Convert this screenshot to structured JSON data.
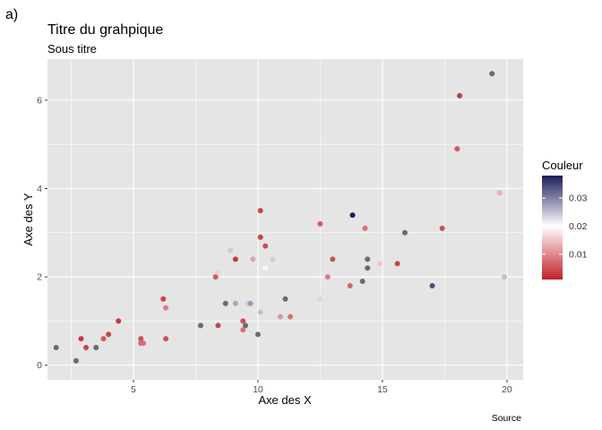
{
  "tag": "a)",
  "chart_data": {
    "type": "scatter",
    "title": "Titre du grahpique",
    "subtitle": "Sous titre",
    "xlabel": "Axe des X",
    "ylabel": "Axe des Y",
    "caption": "Source",
    "xlim": [
      1.55,
      20.65
    ],
    "ylim": [
      -0.33,
      6.93
    ],
    "x_ticks": [
      5,
      10,
      15,
      20
    ],
    "x_tick_labels": [
      "5",
      "10",
      "15",
      "20"
    ],
    "y_ticks": [
      0,
      2,
      4,
      6
    ],
    "y_tick_labels": [
      "0",
      "2",
      "4",
      "6"
    ],
    "grid": true,
    "panel_background": "#e5e5e5",
    "grid_color": "#ffffff",
    "na_color": "#6b6b6b",
    "legend": {
      "title": "Couleur",
      "placement": "right",
      "scale_limits": [
        0.001,
        0.038
      ],
      "ticks": [
        0.01,
        0.02,
        0.03
      ],
      "tick_labels": [
        "0.01",
        "0.02",
        "0.03"
      ],
      "colors": {
        "low": "#c0202a",
        "mid": "#ffffff",
        "high": "#1c1c5c",
        "midpoint": 0.02
      }
    },
    "points": [
      {
        "x": 1.9,
        "y": 0.4,
        "c": null
      },
      {
        "x": 2.7,
        "y": 0.1,
        "c": null
      },
      {
        "x": 2.9,
        "y": 0.6,
        "c": 0.003
      },
      {
        "x": 3.1,
        "y": 0.4,
        "c": 0.004
      },
      {
        "x": 3.5,
        "y": 0.4,
        "c": null
      },
      {
        "x": 3.8,
        "y": 0.6,
        "c": 0.006
      },
      {
        "x": 4.0,
        "y": 0.7,
        "c": 0.004
      },
      {
        "x": 4.4,
        "y": 1.0,
        "c": 0.003
      },
      {
        "x": 5.3,
        "y": 0.6,
        "c": 0.005
      },
      {
        "x": 5.3,
        "y": 0.5,
        "c": 0.007
      },
      {
        "x": 5.4,
        "y": 0.5,
        "c": 0.008
      },
      {
        "x": 6.2,
        "y": 1.5,
        "c": 0.004
      },
      {
        "x": 6.3,
        "y": 1.3,
        "c": 0.009
      },
      {
        "x": 6.3,
        "y": 0.6,
        "c": 0.005
      },
      {
        "x": 7.7,
        "y": 0.9,
        "c": null
      },
      {
        "x": 8.3,
        "y": 2.0,
        "c": 0.006
      },
      {
        "x": 8.4,
        "y": 2.1,
        "c": 0.016
      },
      {
        "x": 8.4,
        "y": 0.9,
        "c": 0.004
      },
      {
        "x": 8.7,
        "y": 1.4,
        "c": null
      },
      {
        "x": 8.9,
        "y": 2.6,
        "c": 0.024
      },
      {
        "x": 9.1,
        "y": 2.4,
        "c": 0.003
      },
      {
        "x": 9.1,
        "y": 1.4,
        "c": 0.027
      },
      {
        "x": 9.4,
        "y": 1.0,
        "c": 0.005
      },
      {
        "x": 9.4,
        "y": 0.8,
        "c": 0.008
      },
      {
        "x": 9.5,
        "y": 0.9,
        "c": null
      },
      {
        "x": 9.6,
        "y": 1.4,
        "c": 0.024
      },
      {
        "x": 9.7,
        "y": 1.4,
        "c": 0.028
      },
      {
        "x": 9.8,
        "y": 2.4,
        "c": 0.012
      },
      {
        "x": 9.8,
        "y": 1.1,
        "c": 0.022
      },
      {
        "x": 10.0,
        "y": 0.7,
        "c": null
      },
      {
        "x": 10.1,
        "y": 3.5,
        "c": 0.004
      },
      {
        "x": 10.1,
        "y": 2.9,
        "c": 0.004
      },
      {
        "x": 10.1,
        "y": 1.2,
        "c": 0.025
      },
      {
        "x": 10.3,
        "y": 2.7,
        "c": 0.005
      },
      {
        "x": 10.3,
        "y": 2.2,
        "c": 0.019
      },
      {
        "x": 10.6,
        "y": 2.4,
        "c": 0.024
      },
      {
        "x": 10.9,
        "y": 1.1,
        "c": 0.011
      },
      {
        "x": 11.1,
        "y": 1.5,
        "c": null
      },
      {
        "x": 11.3,
        "y": 1.1,
        "c": 0.008
      },
      {
        "x": 12.5,
        "y": 3.2,
        "c": 0.006
      },
      {
        "x": 12.5,
        "y": 1.5,
        "c": 0.016
      },
      {
        "x": 12.8,
        "y": 2.0,
        "c": 0.009
      },
      {
        "x": 13.0,
        "y": 2.4,
        "c": 0.005
      },
      {
        "x": 13.7,
        "y": 1.8,
        "c": 0.007
      },
      {
        "x": 13.8,
        "y": 3.4,
        "c": 0.038
      },
      {
        "x": 14.2,
        "y": 1.9,
        "c": null
      },
      {
        "x": 14.3,
        "y": 3.1,
        "c": 0.008
      },
      {
        "x": 14.4,
        "y": 2.4,
        "c": null
      },
      {
        "x": 14.4,
        "y": 2.2,
        "c": null
      },
      {
        "x": 14.9,
        "y": 2.3,
        "c": 0.015
      },
      {
        "x": 15.6,
        "y": 2.3,
        "c": 0.004
      },
      {
        "x": 15.9,
        "y": 3.0,
        "c": null
      },
      {
        "x": 17.0,
        "y": 1.8,
        "c": 0.034
      },
      {
        "x": 17.4,
        "y": 3.1,
        "c": 0.005
      },
      {
        "x": 18.0,
        "y": 4.9,
        "c": 0.006
      },
      {
        "x": 18.1,
        "y": 6.1,
        "c": 0.003
      },
      {
        "x": 19.4,
        "y": 6.6,
        "c": null
      },
      {
        "x": 19.7,
        "y": 3.9,
        "c": 0.013
      },
      {
        "x": 19.9,
        "y": 2.0,
        "c": 0.025
      }
    ]
  }
}
